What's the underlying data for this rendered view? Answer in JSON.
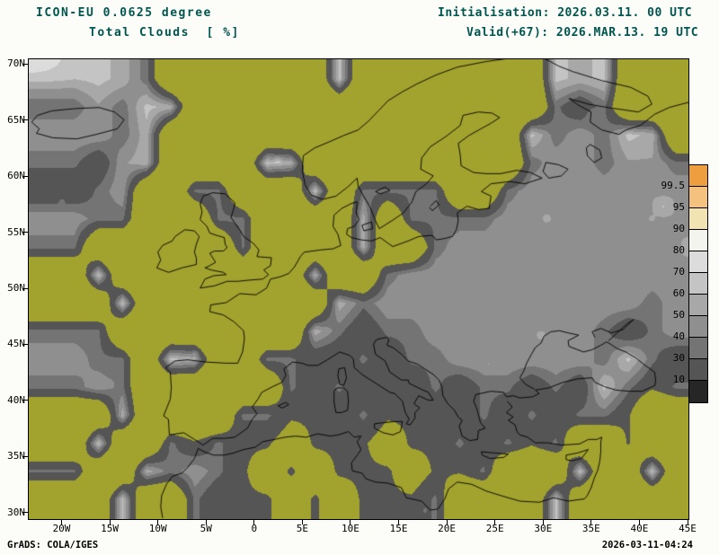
{
  "header": {
    "model": "ICON-EU 0.0625 degree",
    "product": "Total Clouds  [ %]",
    "initialisation": "Initialisation: 2026.03.11. 00 UTC",
    "valid": "Valid(+67): 2026.MAR.13. 19 UTC"
  },
  "footer": {
    "credit": "GrADS: COLA/IGES",
    "generated": "2026-03-11-04:24"
  },
  "axes": {
    "lat_labels": [
      "70N",
      "65N",
      "60N",
      "55N",
      "50N",
      "45N",
      "40N",
      "35N",
      "30N"
    ],
    "lat_values": [
      70,
      65,
      60,
      55,
      50,
      45,
      40,
      35,
      30
    ],
    "lon_labels": [
      "20W",
      "15W",
      "10W",
      "5W",
      "0",
      "5E",
      "10E",
      "15E",
      "20E",
      "25E",
      "30E",
      "35E",
      "40E",
      "45E"
    ],
    "lon_values": [
      -20,
      -15,
      -10,
      -5,
      0,
      5,
      10,
      15,
      20,
      25,
      30,
      35,
      40,
      45
    ]
  },
  "colors": {
    "title_text": "#00564f",
    "clear_olive": "#a2a22e",
    "frame": "#000000",
    "page_background": "#fcfcf8",
    "axis_text": "#000000"
  },
  "chart_data": {
    "type": "heatmap",
    "title": "Total Clouds [ %]",
    "model": "ICON-EU 0.0625 degree",
    "initialisation": "2026.03.11. 00 UTC",
    "valid": "2026.MAR.13. 19 UTC",
    "forecast_offset_hours": 67,
    "units": "%",
    "domain": {
      "lon_min": -23.5,
      "lon_max": 45,
      "lat_min": 29.5,
      "lat_max": 70.5
    },
    "colorbar": {
      "boundary_labels": [
        "99.5",
        "95",
        "90",
        "80",
        "70",
        "60",
        "50",
        "40",
        "30",
        "10"
      ],
      "segment_colors_top_to_bottom": [
        "#ee9e3e",
        "#f4c27e",
        "#f2e3b2",
        "#f4f4ee",
        "#dcdcdc",
        "#c4c4c4",
        "#a8a8a8",
        "#8f8f8f",
        "#747474",
        "#555555",
        "#262626"
      ],
      "clear_color": "#a2a22e"
    },
    "field_grid": {
      "lon_start": -20,
      "lon_step": 2.5,
      "lat_start": 70,
      "lat_step": -2.5,
      "class_values": {
        "o": 0,
        "d": 30,
        "g": 50,
        "l": 70,
        "w": 85,
        "y": 93,
        "O": 100
      },
      "rows": [
        "yOyloooooooOooooooooOyOooo",
        "lwlOyooooooooooooooolglooo",
        "wwlyoooooooooooooooOlwlOyo",
        "lgwyooooOyooooooooolwwlwwl",
        "glwoolloooOolllloolwwwwwww",
        "wllooollooooyollllwwwwwwww",
        "loooooolooooyoolwwwwwwwwww",
        "oOooooooooyoolwwwwwwwwwwww",
        "ooOooooooooylwwwwwwwwwwwlw",
        "llooooooooylgllwwwwwwwlglw",
        "wlloOyoollgglgllwwwwwwlOlg",
        "lwloooooolglggglgllglgOlgl",
        "ooyoooollggglgggglglgllgoo",
        "oOoolglggdgggdgglglgloogoo",
        "looylwlgdgdgggdggloooOooOo",
        "ooOoolgggdgdggglooooOooooo"
      ]
    }
  }
}
